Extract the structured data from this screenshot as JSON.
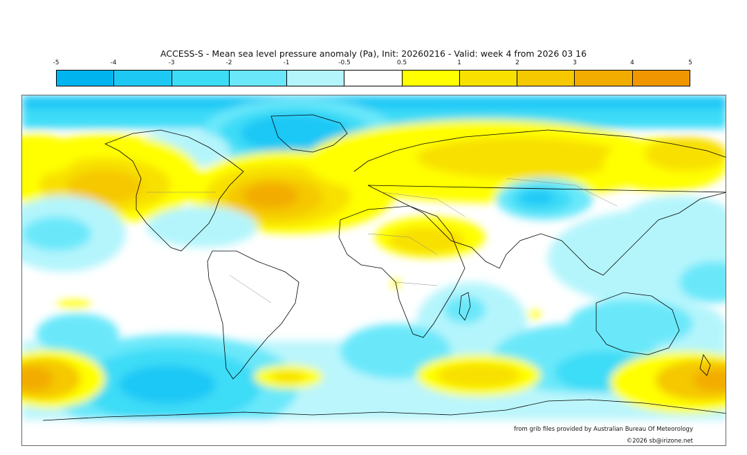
{
  "title": "ACCESS-S - Mean sea level pressure anomaly (Pa), Init: 20260216 - Valid: week 4 from 2026 03 16",
  "colorbar": {
    "ticks": [
      "-5",
      "-4",
      "-3",
      "-2",
      "-1",
      "-0.5",
      "0.5",
      "1",
      "2",
      "3",
      "4",
      "5"
    ],
    "colors": [
      "#00b4f0",
      "#1ec8f5",
      "#3cdcf7",
      "#6ae8fa",
      "#b4f5fc",
      "#ffffff",
      "#ffff00",
      "#f8e000",
      "#f5c800",
      "#f2ac00",
      "#f09600"
    ]
  },
  "legend_colors": {
    "ocean_bg": "#ffffff",
    "coast": "#000000",
    "border": "#888888"
  },
  "credits": {
    "source": "from grib files provided by Australian Bureau Of Meteorology",
    "copyright": "©2026 sb@irizone.net"
  }
}
